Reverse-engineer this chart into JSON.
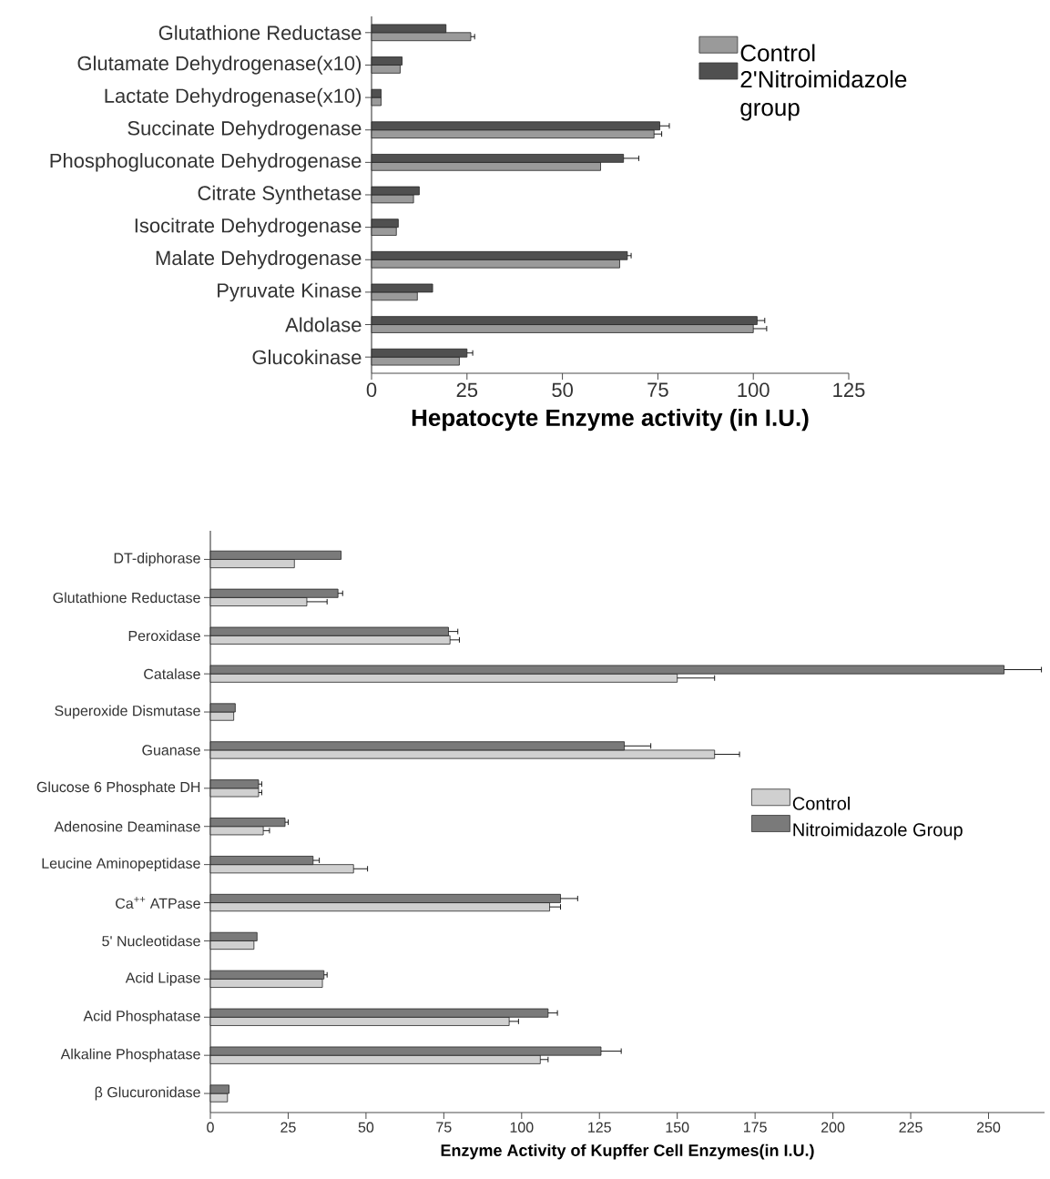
{
  "chart_data": [
    {
      "type": "bar",
      "orientation": "horizontal",
      "xlabel": "Hepatocyte Enzyme activity (in I.U.)",
      "categories": [
        "Glutathione Reductase",
        "Glutamate Dehydrogenase(x10)",
        "Lactate Dehydrogenase(x10)",
        "Succinate Dehydrogenase",
        "Phosphogluconate Dehydrogenase",
        "Citrate Synthetase",
        "Isocitrate Dehydrogenase",
        "Malate Dehydrogenase",
        "Pyruvate Kinase",
        "Aldolase",
        "Glucokinase"
      ],
      "series": [
        {
          "name": "Control",
          "color": "#9a9a9a",
          "values": [
            26,
            7.5,
            2.5,
            74,
            60,
            11,
            6.5,
            65,
            12,
            100,
            23
          ],
          "errors": [
            1,
            null,
            null,
            2,
            null,
            null,
            null,
            null,
            null,
            3.5,
            null
          ]
        },
        {
          "name": "2'Nitroimidazole group",
          "color": "#505050",
          "values": [
            19.5,
            8,
            2.5,
            75.5,
            66,
            12.5,
            7,
            67,
            16,
            101,
            25
          ],
          "errors": [
            null,
            null,
            null,
            2.5,
            4,
            null,
            null,
            1,
            null,
            2,
            1.5
          ]
        }
      ],
      "xlim": [
        0,
        125
      ],
      "xticks": [
        0,
        25,
        50,
        75,
        100,
        125
      ],
      "legend": "top right"
    },
    {
      "type": "bar",
      "orientation": "horizontal",
      "xlabel": "Enzyme Activity of Kupffer Cell Enzymes(in I.U.)",
      "categories": [
        "DT-diphorase",
        "Glutathione Reductase",
        "Peroxidase",
        "Catalase",
        "Superoxide Dismutase",
        "Guanase",
        "Glucose 6 Phosphate DH",
        "Adenosine Deaminase",
        "Leucine Aminopeptidase",
        "Ca$^{++}$ ATPase",
        "5' Nucleotidase",
        "Acid Lipase",
        "Acid Phosphatase",
        "Alkaline Phosphatase",
        "β Glucuronidase"
      ],
      "series": [
        {
          "name": "Control",
          "color": "#d0d0d0",
          "values": [
            27,
            31,
            77,
            150,
            7.5,
            162,
            15.5,
            17,
            46,
            109,
            14,
            36,
            96,
            106,
            5.5
          ],
          "errors": [
            null,
            6.5,
            3,
            12,
            null,
            8,
            1,
            2,
            4.5,
            3.5,
            null,
            null,
            3,
            2.5,
            null
          ]
        },
        {
          "name": "Nitroimidazole Group",
          "color": "#7a7a7a",
          "values": [
            42,
            41,
            76.5,
            255,
            8,
            133,
            15.5,
            24,
            33,
            112.5,
            15,
            36.5,
            108.5,
            125.5,
            6
          ],
          "errors": [
            null,
            1.5,
            3,
            12,
            null,
            8.5,
            1,
            1,
            2,
            5.5,
            null,
            1,
            3,
            6.5,
            null
          ]
        }
      ],
      "xlim": [
        0,
        268
      ],
      "xticks": [
        0,
        25,
        50,
        75,
        100,
        125,
        150,
        175,
        200,
        225,
        250
      ],
      "legend": "right"
    }
  ]
}
